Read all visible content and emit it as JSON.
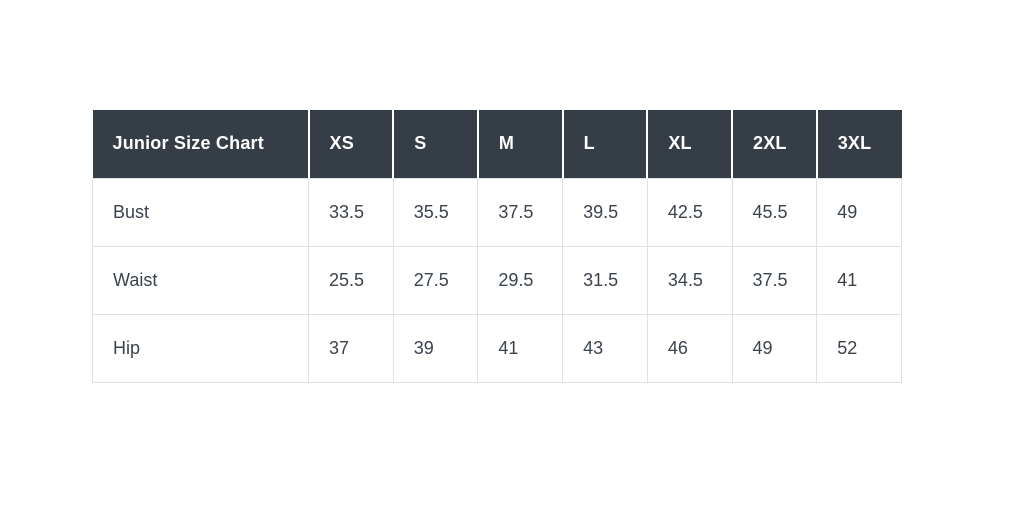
{
  "chart_data": {
    "type": "table",
    "title": "Junior Size Chart",
    "columns": [
      "XS",
      "S",
      "M",
      "L",
      "XL",
      "2XL",
      "3XL"
    ],
    "rows": [
      {
        "label": "Bust",
        "values": [
          "33.5",
          "35.5",
          "37.5",
          "39.5",
          "42.5",
          "45.5",
          "49"
        ]
      },
      {
        "label": "Waist",
        "values": [
          "25.5",
          "27.5",
          "29.5",
          "31.5",
          "34.5",
          "37.5",
          "41"
        ]
      },
      {
        "label": "Hip",
        "values": [
          "37",
          "39",
          "41",
          "43",
          "46",
          "49",
          "52"
        ]
      }
    ],
    "layout": {
      "legend": "none",
      "grid": "on",
      "header_position": "top-row"
    },
    "colors": {
      "header_bg": "#353d46",
      "header_text": "#ffffff",
      "body_text": "#3b434c",
      "grid_border": "#e0e0e0",
      "header_divider": "#ffffff",
      "page_bg": "#ffffff"
    }
  }
}
